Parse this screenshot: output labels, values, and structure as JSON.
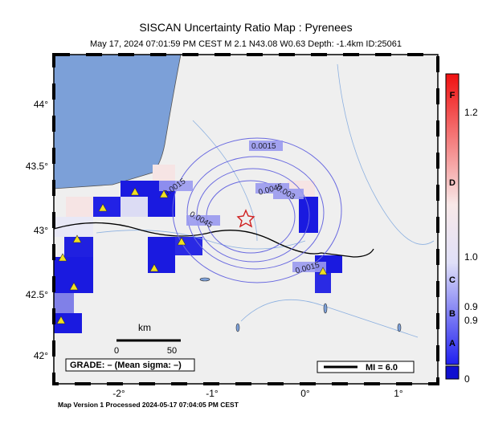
{
  "header": {
    "title": "SISCAN Uncertainty Ratio Map : Pyrenees",
    "subtitle": "May 17, 2024 07:01:59 PM CEST   M 2.1   N43.08 W0.63   Depth: -1.4km   ID:25061"
  },
  "map": {
    "lon_labels": [
      "-2°",
      "-1°",
      "0°",
      "1°"
    ],
    "lat_labels": [
      "44°",
      "43.5°",
      "43°",
      "42.5°",
      "42°"
    ],
    "contour_labels": [
      "0.0015",
      "0.0015",
      "0.003",
      "0.0045",
      "0.0045",
      "0.0015"
    ],
    "scale": {
      "unit": "km",
      "start": "0",
      "end": "50"
    },
    "grade": "GRADE: – (Mean sigma: –)",
    "mi_legend": "MI = 6.0"
  },
  "colorbar": {
    "labels": [
      "F",
      "1.2",
      "D",
      "1.0",
      "C",
      "B",
      "0.9",
      "0.9",
      "A",
      "0"
    ]
  },
  "footer": "Map Version 1 Processed 2024-05-17 07:04:05 PM CEST"
}
